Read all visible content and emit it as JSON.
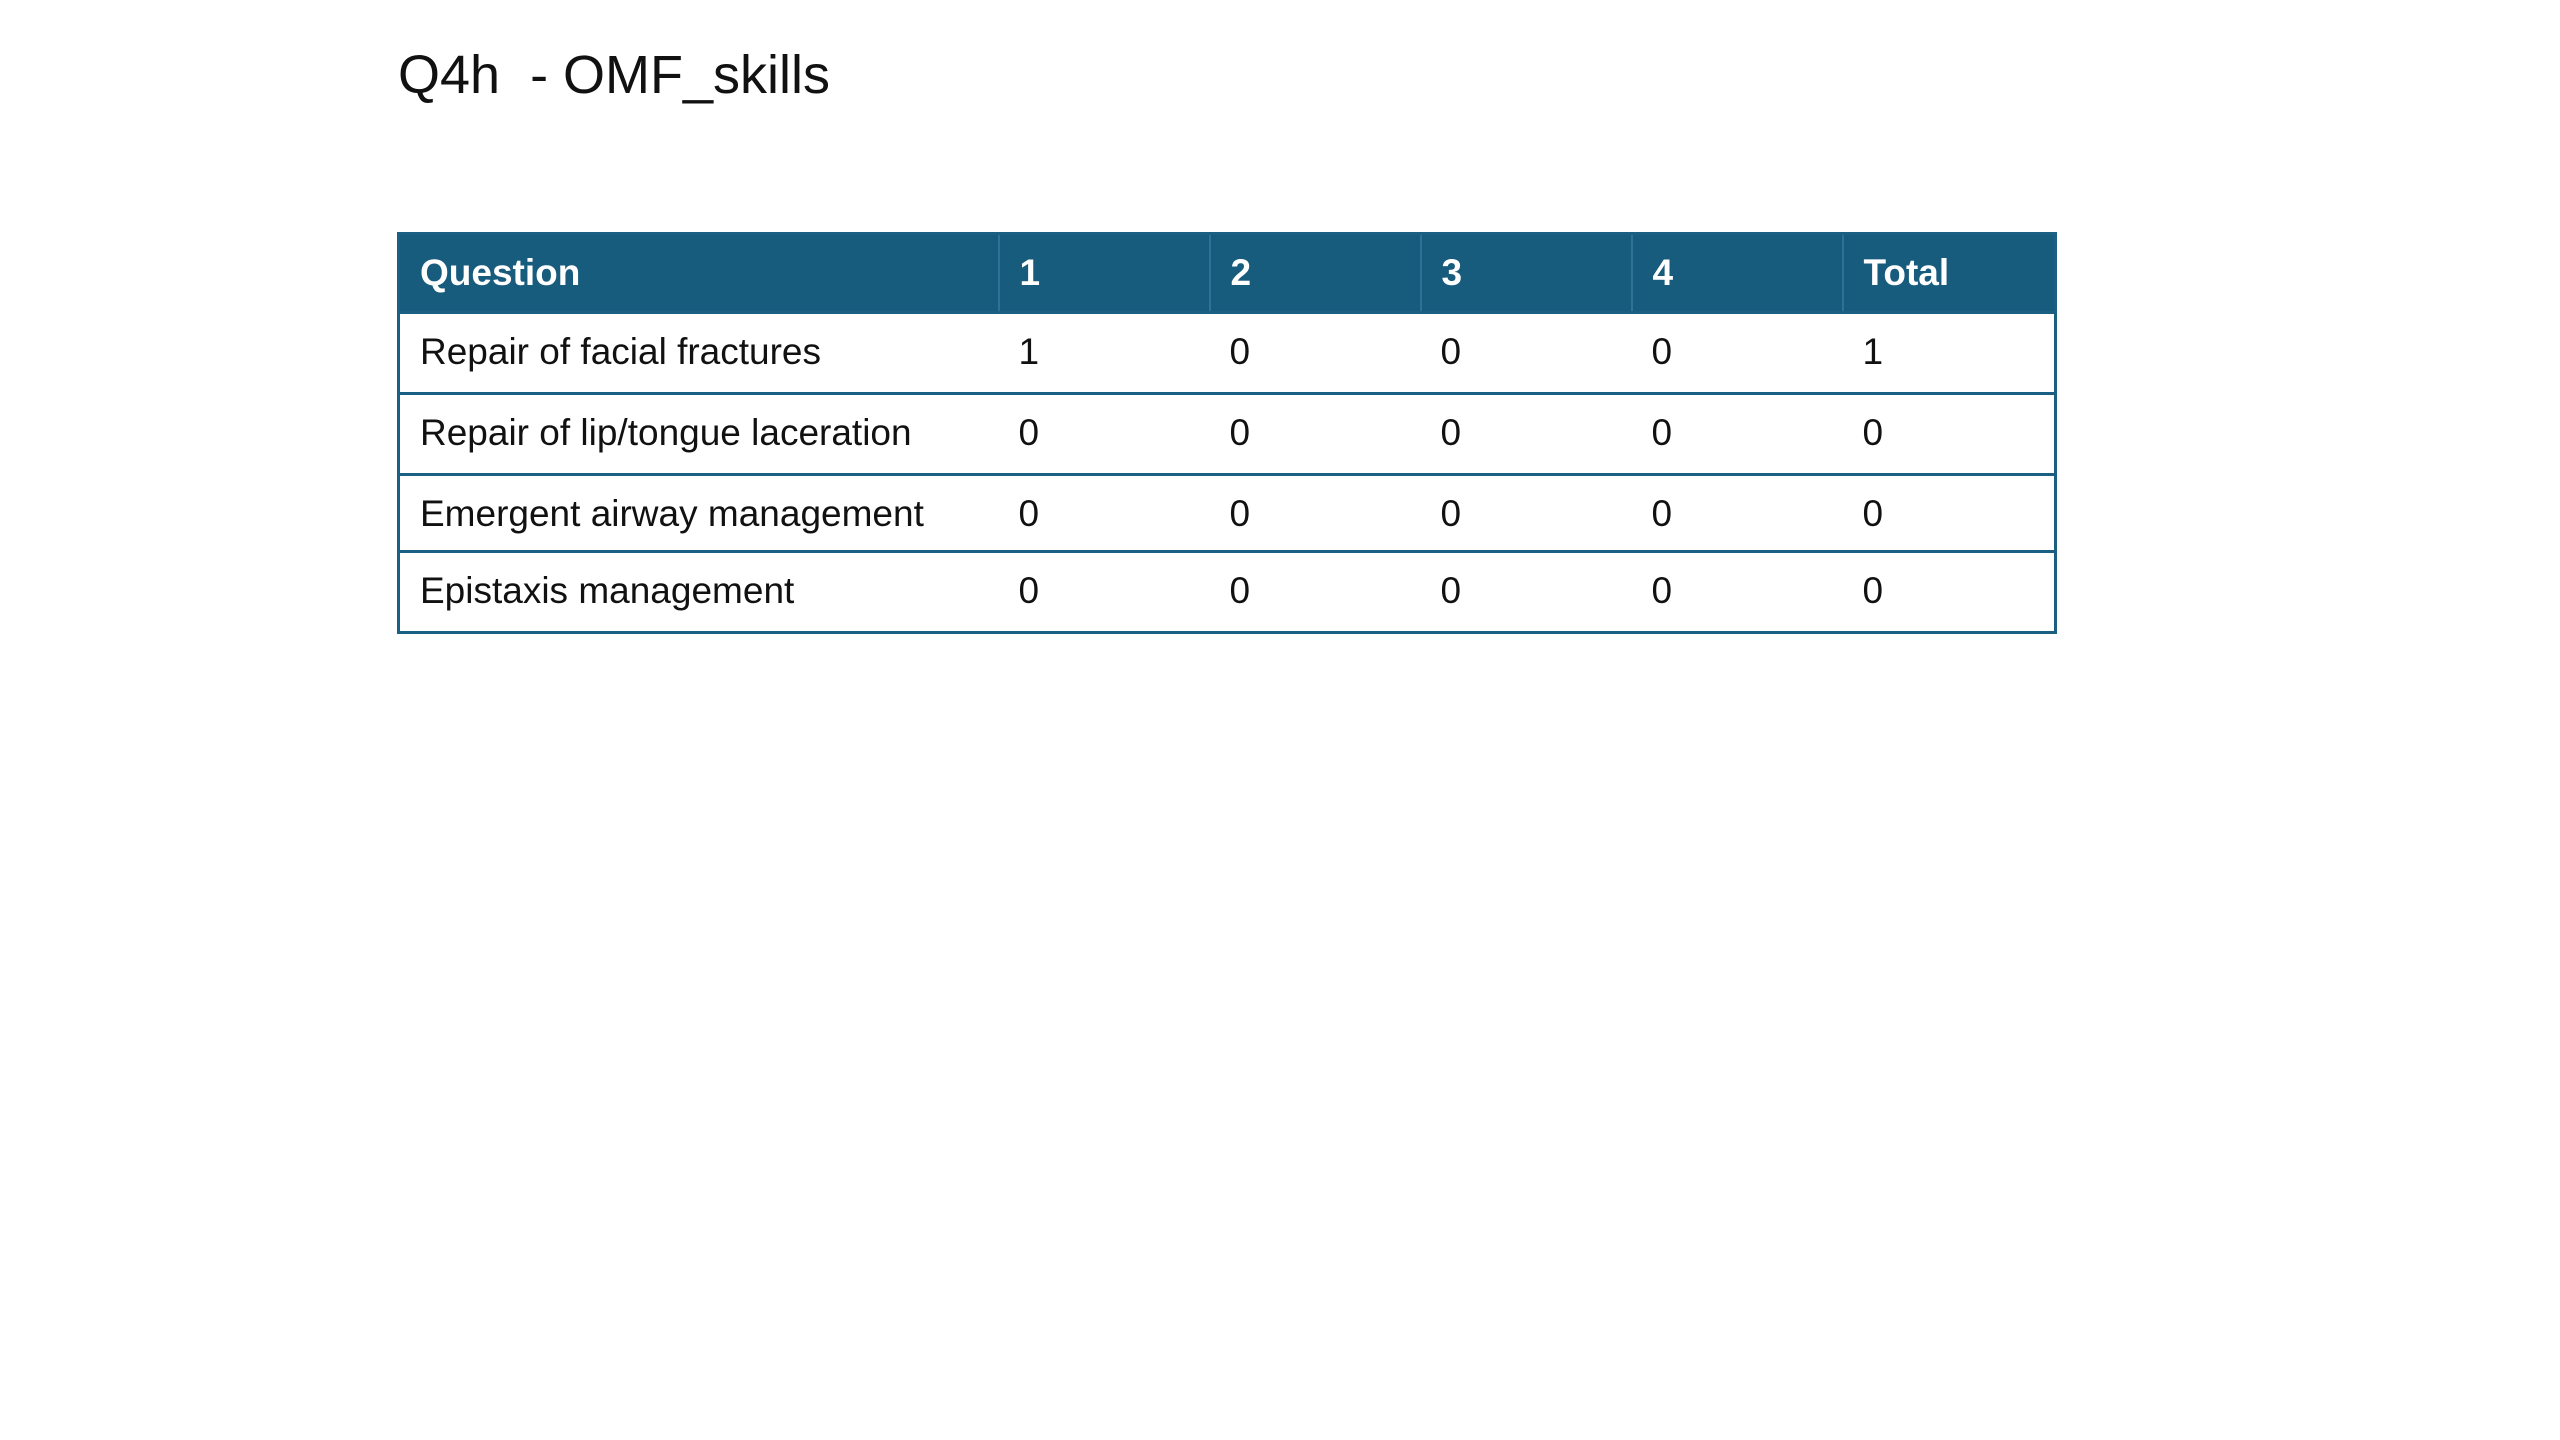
{
  "slide": {
    "title": "Q4h  - OMF_skills"
  },
  "table": {
    "headers": [
      "Question",
      "1",
      "2",
      "3",
      "4",
      "Total"
    ],
    "rows": [
      [
        "Repair of facial fractures",
        "1",
        "0",
        "0",
        "0",
        "1"
      ],
      [
        "Repair of lip/tongue laceration",
        "0",
        "0",
        "0",
        "0",
        "0"
      ],
      [
        "Emergent airway management",
        "0",
        "0",
        "0",
        "0",
        "0"
      ],
      [
        "Epistaxis management",
        "0",
        "0",
        "0",
        "0",
        "0"
      ]
    ],
    "header_color": "#175b7d",
    "border_color": "#1b5f82"
  }
}
